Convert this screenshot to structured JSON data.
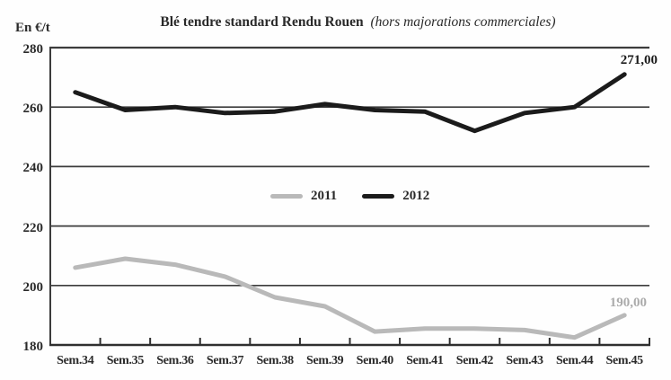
{
  "header": {
    "unit_label": "En €/t",
    "title": "Blé tendre standard Rendu Rouen",
    "subtitle": "(hors majorations commerciales)"
  },
  "chart_data": {
    "type": "line",
    "title": "Blé tendre standard Rendu Rouen (hors majorations commerciales)",
    "ylabel": "En €/t",
    "xlabel": "",
    "ylim": [
      180,
      280
    ],
    "yticks": [
      180,
      200,
      220,
      240,
      260,
      280
    ],
    "grid": true,
    "legend_position": "center",
    "categories": [
      "Sem.34",
      "Sem.35",
      "Sem.36",
      "Sem.37",
      "Sem.38",
      "Sem.39",
      "Sem.40",
      "Sem.41",
      "Sem.42",
      "Sem.43",
      "Sem.44",
      "Sem.45"
    ],
    "series": [
      {
        "name": "2011",
        "color": "#b9b9b9",
        "values": [
          206,
          209,
          207,
          203,
          196,
          193,
          184.5,
          185.5,
          185.5,
          185,
          182.5,
          190
        ],
        "end_label": "190,00"
      },
      {
        "name": "2012",
        "color": "#1b1b1b",
        "values": [
          265,
          259,
          260,
          258,
          258.5,
          261,
          259,
          258.5,
          252,
          258,
          260,
          271
        ],
        "end_label": "271,00"
      }
    ]
  }
}
